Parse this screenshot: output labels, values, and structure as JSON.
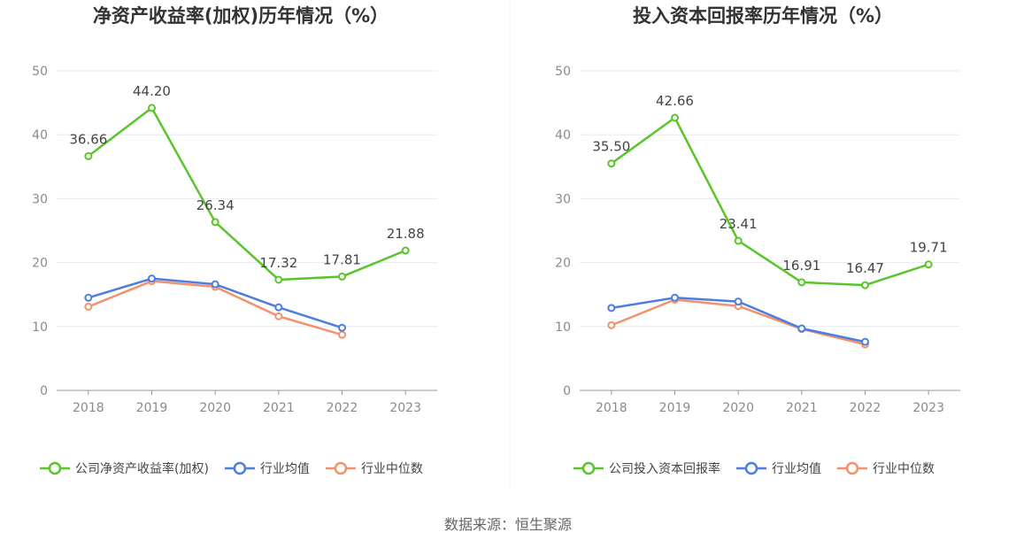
{
  "source": "数据来源：恒生聚源",
  "colors": {
    "company": "#5ac52a",
    "avg": "#4a7ee0",
    "median": "#f4906a",
    "grid": "#e6e9f2",
    "axis": "#999999"
  },
  "chart_data": [
    {
      "type": "line",
      "title": "净资产收益率(加权)历年情况（%）",
      "categories": [
        "2018",
        "2019",
        "2020",
        "2021",
        "2022",
        "2023"
      ],
      "ylim": [
        0,
        50
      ],
      "yticks": [
        0,
        10,
        20,
        30,
        40,
        50
      ],
      "grid": true,
      "legend": "bottom",
      "series": [
        {
          "name": "公司净资产收益率(加权)",
          "color_key": "company",
          "values": [
            36.66,
            44.2,
            26.34,
            17.32,
            17.81,
            21.88
          ],
          "labels": [
            "36.66",
            "44.20",
            "26.34",
            "17.32",
            "17.81",
            "21.88"
          ]
        },
        {
          "name": "行业均值",
          "color_key": "avg",
          "values": [
            14.5,
            17.5,
            16.6,
            13.0,
            9.8,
            null
          ]
        },
        {
          "name": "行业中位数",
          "color_key": "median",
          "values": [
            13.1,
            17.1,
            16.2,
            11.6,
            8.7,
            null
          ]
        }
      ]
    },
    {
      "type": "line",
      "title": "投入资本回报率历年情况（%）",
      "categories": [
        "2018",
        "2019",
        "2020",
        "2021",
        "2022",
        "2023"
      ],
      "ylim": [
        0,
        50
      ],
      "yticks": [
        0,
        10,
        20,
        30,
        40,
        50
      ],
      "grid": true,
      "legend": "bottom",
      "series": [
        {
          "name": "公司投入资本回报率",
          "color_key": "company",
          "values": [
            35.5,
            42.66,
            23.41,
            16.91,
            16.47,
            19.71
          ],
          "labels": [
            "35.50",
            "42.66",
            "23.41",
            "16.91",
            "16.47",
            "19.71"
          ]
        },
        {
          "name": "行业均值",
          "color_key": "avg",
          "values": [
            12.9,
            14.5,
            13.9,
            9.7,
            7.6,
            null
          ]
        },
        {
          "name": "行业中位数",
          "color_key": "median",
          "values": [
            10.2,
            14.2,
            13.2,
            9.6,
            7.2,
            null
          ]
        }
      ]
    }
  ]
}
